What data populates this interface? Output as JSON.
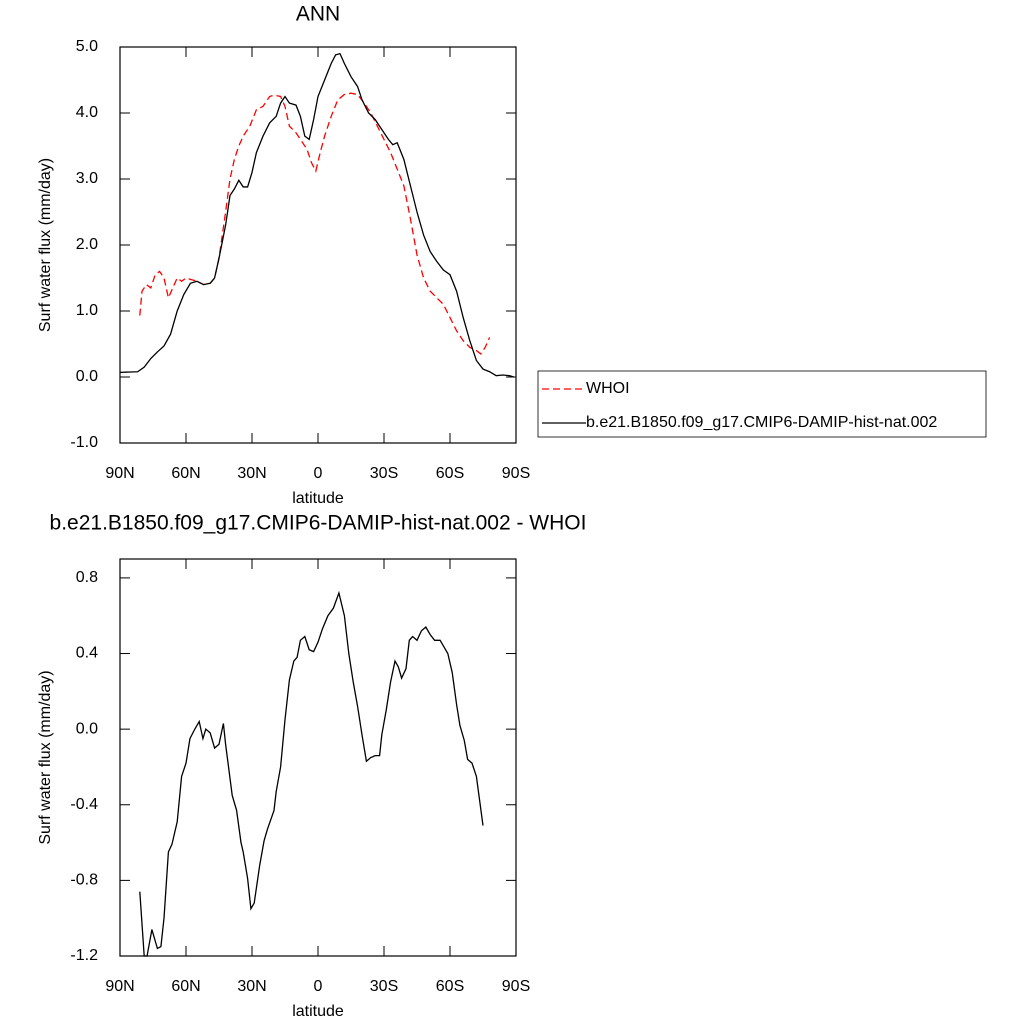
{
  "chart_data": [
    {
      "type": "line",
      "title": "ANN",
      "xlabel": "latitude",
      "ylabel": "Surf water flux (mm/day)",
      "xlim": [
        90,
        -90
      ],
      "ylim": [
        -1,
        5
      ],
      "xticks": [
        {
          "value": 90,
          "label": "90N"
        },
        {
          "value": 60,
          "label": "60N"
        },
        {
          "value": 30,
          "label": "30N"
        },
        0,
        {
          "value": -30,
          "label": "30S"
        },
        {
          "value": -60,
          "label": "60S"
        },
        {
          "value": -90,
          "label": "90S"
        }
      ],
      "yticks": [
        {
          "value": -1,
          "label": "-1.0"
        },
        {
          "value": 0,
          "label": "0.0"
        },
        {
          "value": 1,
          "label": "1.0"
        },
        {
          "value": 2,
          "label": "2.0"
        },
        {
          "value": 3,
          "label": "3.0"
        },
        {
          "value": 4,
          "label": "4.0"
        },
        {
          "value": 5,
          "label": "5.0"
        }
      ],
      "grid": false,
      "legend": "right",
      "series": [
        {
          "name": "WHOI",
          "color": "#ff0000",
          "dashed": true,
          "x": [
            81,
            80,
            78,
            76,
            74,
            72,
            70,
            68,
            66,
            64,
            62,
            60,
            58,
            55,
            52,
            49,
            47,
            45,
            42,
            40,
            38,
            36,
            34,
            31,
            28,
            25,
            22,
            20,
            17,
            15,
            13,
            10,
            8,
            5,
            3,
            1,
            -1,
            -3,
            -6,
            -9,
            -12,
            -15,
            -18,
            -21,
            -24,
            -27,
            -30,
            -33,
            -36,
            -39,
            -42,
            -45,
            -48,
            -51,
            -54,
            -57,
            -60,
            -63,
            -66,
            -69,
            -72,
            -74,
            -76,
            -78
          ],
          "values": [
            0.93,
            1.3,
            1.4,
            1.35,
            1.55,
            1.6,
            1.5,
            1.2,
            1.35,
            1.5,
            1.45,
            1.5,
            1.48,
            1.45,
            1.4,
            1.42,
            1.5,
            1.8,
            2.5,
            3.0,
            3.3,
            3.5,
            3.65,
            3.8,
            4.05,
            4.1,
            4.25,
            4.27,
            4.25,
            4.1,
            3.8,
            3.7,
            3.6,
            3.45,
            3.25,
            3.12,
            3.4,
            3.65,
            3.95,
            4.2,
            4.28,
            4.3,
            4.28,
            4.15,
            4.0,
            3.8,
            3.6,
            3.4,
            3.15,
            2.9,
            2.4,
            1.85,
            1.5,
            1.3,
            1.2,
            1.1,
            0.9,
            0.7,
            0.55,
            0.45,
            0.4,
            0.35,
            0.45,
            0.6
          ]
        },
        {
          "name": "b.e21.B1850.f09_g17.CMIP6-DAMIP-hist-nat.002",
          "color": "#000000",
          "dashed": false,
          "x": [
            90,
            82,
            79,
            76,
            73,
            70,
            67,
            64,
            61,
            58,
            55,
            52,
            49,
            47,
            45,
            42,
            40,
            38,
            36,
            34,
            32,
            30,
            28,
            25,
            22,
            19,
            17,
            15,
            13,
            10,
            8,
            6,
            4,
            2,
            0,
            -3,
            -6,
            -8,
            -10,
            -12,
            -15,
            -18,
            -20,
            -23,
            -26,
            -29,
            -32,
            -34,
            -36,
            -39,
            -42,
            -45,
            -48,
            -51,
            -54,
            -57,
            -60,
            -63,
            -66,
            -69,
            -72,
            -75,
            -78,
            -81,
            -84,
            -87,
            -89
          ],
          "values": [
            0.07,
            0.08,
            0.15,
            0.28,
            0.38,
            0.47,
            0.65,
            1.0,
            1.25,
            1.42,
            1.45,
            1.4,
            1.42,
            1.5,
            1.8,
            2.3,
            2.75,
            2.85,
            2.98,
            2.88,
            2.88,
            3.1,
            3.4,
            3.65,
            3.85,
            3.95,
            4.15,
            4.25,
            4.15,
            4.12,
            3.95,
            3.65,
            3.6,
            3.9,
            4.25,
            4.5,
            4.75,
            4.88,
            4.9,
            4.75,
            4.55,
            4.4,
            4.2,
            4.0,
            3.9,
            3.75,
            3.6,
            3.52,
            3.55,
            3.3,
            2.9,
            2.5,
            2.15,
            1.9,
            1.75,
            1.62,
            1.55,
            1.3,
            0.9,
            0.55,
            0.25,
            0.12,
            0.08,
            0.02,
            0.03,
            0.02,
            0.0
          ]
        }
      ]
    },
    {
      "type": "line",
      "title": "b.e21.B1850.f09_g17.CMIP6-DAMIP-hist-nat.002 - WHOI",
      "xlabel": "latitude",
      "ylabel": "Surf water flux (mm/day)",
      "xlim": [
        90,
        -90
      ],
      "ylim": [
        -1.2,
        0.9
      ],
      "xticks": [
        {
          "value": 90,
          "label": "90N"
        },
        {
          "value": 60,
          "label": "60N"
        },
        {
          "value": 30,
          "label": "30N"
        },
        0,
        {
          "value": -30,
          "label": "30S"
        },
        {
          "value": -60,
          "label": "60S"
        },
        {
          "value": -90,
          "label": "90S"
        }
      ],
      "yticks": [
        -1.2,
        -0.8,
        -0.4,
        {
          "value": 0,
          "label": "0.0"
        },
        0.4,
        0.8
      ],
      "grid": false,
      "series": [
        {
          "color": "#000000",
          "dashed": false,
          "x": [
            81,
            79,
            77.7,
            75.5,
            73,
            71.4,
            70,
            68,
            66.4,
            64,
            62,
            60,
            58.2,
            56,
            54,
            52.3,
            51,
            49,
            47,
            45,
            43,
            42,
            39,
            37,
            35,
            34,
            32,
            30.5,
            29,
            26.5,
            24.5,
            23,
            20,
            19,
            17,
            15,
            13,
            11,
            9.5,
            8,
            6,
            4,
            2,
            0,
            -2,
            -4.5,
            -7,
            -9.5,
            -12,
            -14,
            -16,
            -18,
            -20,
            -22,
            -24,
            -26,
            -28,
            -29,
            -31,
            -33,
            -35,
            -36.5,
            -38,
            -40,
            -41.5,
            -43,
            -45,
            -47,
            -49,
            -51,
            -53,
            -55.5,
            -57,
            -59,
            -61,
            -63,
            -64.5,
            -66.5,
            -68,
            -70,
            -72,
            -73.5,
            -75
          ],
          "values": [
            -0.86,
            -1.2,
            -1.2,
            -1.06,
            -1.16,
            -1.15,
            -1.0,
            -0.65,
            -0.61,
            -0.49,
            -0.25,
            -0.18,
            -0.05,
            0.0,
            0.04,
            -0.05,
            0.0,
            -0.02,
            -0.1,
            -0.08,
            0.03,
            -0.08,
            -0.35,
            -0.43,
            -0.6,
            -0.65,
            -0.79,
            -0.95,
            -0.92,
            -0.72,
            -0.59,
            -0.53,
            -0.43,
            -0.33,
            -0.2,
            0.05,
            0.26,
            0.36,
            0.38,
            0.47,
            0.49,
            0.42,
            0.41,
            0.46,
            0.53,
            0.6,
            0.64,
            0.72,
            0.6,
            0.4,
            0.25,
            0.12,
            -0.03,
            -0.17,
            -0.15,
            -0.14,
            -0.14,
            -0.03,
            0.1,
            0.25,
            0.36,
            0.33,
            0.27,
            0.32,
            0.47,
            0.49,
            0.47,
            0.52,
            0.54,
            0.5,
            0.47,
            0.47,
            0.44,
            0.4,
            0.3,
            0.13,
            0.02,
            -0.06,
            -0.16,
            -0.18,
            -0.25,
            -0.38,
            -0.51
          ]
        }
      ]
    }
  ]
}
